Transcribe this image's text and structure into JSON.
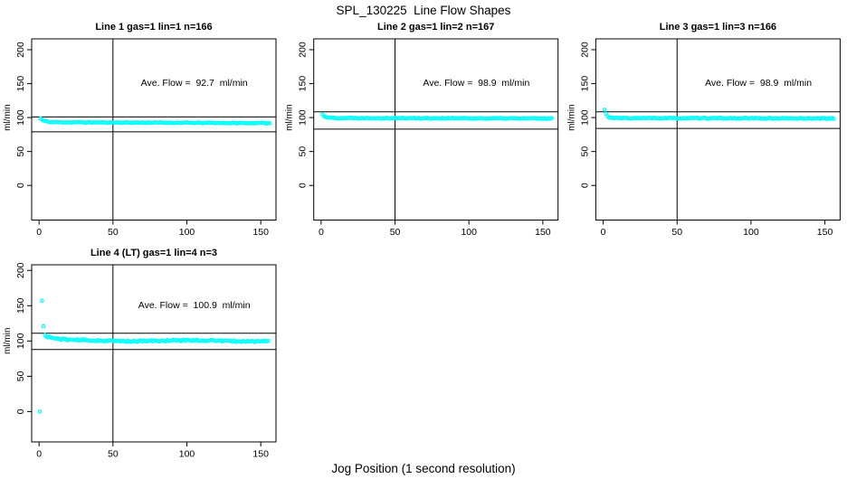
{
  "page": {
    "title": "SPL_130225  Line Flow Shapes",
    "xlabel": "Jog Position (1 second resolution)"
  },
  "colors": {
    "point": "#00FFFF",
    "axis": "#000000",
    "background": "#FFFFFF"
  },
  "chart_data": [
    {
      "type": "scatter",
      "line": 1,
      "gas": 1,
      "lin": 1,
      "n": 166,
      "title": "Line 1 gas=1 lin=1 n=166",
      "annotation": "Ave. Flow =  92.7  ml/min",
      "ave_flow": 92.7,
      "ylabel": "ml/min",
      "xticks": [
        0,
        50,
        100,
        150
      ],
      "yticks": [
        0,
        50,
        100,
        150,
        200
      ],
      "xlim": [
        -5,
        160.3
      ],
      "ylim": [
        -51,
        216
      ],
      "hlines": [
        101,
        79
      ],
      "vline": 50,
      "grid": false,
      "legend": null,
      "series": {
        "name": "flow",
        "x_start": 1,
        "x_end": 156,
        "start": 98.5,
        "settle": 93.2,
        "tau": 2.5,
        "drift": -1.4,
        "noise": 0.65,
        "wave": 0,
        "seed": 11,
        "outliers": []
      }
    },
    {
      "type": "scatter",
      "line": 2,
      "gas": 1,
      "lin": 2,
      "n": 167,
      "title": "Line 2 gas=1 lin=2 n=167",
      "annotation": "Ave. Flow =  98.9  ml/min",
      "ave_flow": 98.9,
      "ylabel": "ml/min",
      "xticks": [
        0,
        50,
        100,
        150
      ],
      "yticks": [
        0,
        50,
        100,
        150,
        200
      ],
      "xlim": [
        -5,
        160.3
      ],
      "ylim": [
        -51,
        216
      ],
      "hlines": [
        108.5,
        83
      ],
      "vline": 50,
      "grid": false,
      "legend": null,
      "series": {
        "name": "flow",
        "x_start": 1,
        "x_end": 156,
        "start": 104.5,
        "settle": 99.4,
        "tau": 2.0,
        "drift": -0.8,
        "noise": 0.7,
        "wave": 0,
        "seed": 22,
        "outliers": []
      }
    },
    {
      "type": "scatter",
      "line": 3,
      "gas": 1,
      "lin": 3,
      "n": 166,
      "title": "Line 3 gas=1 lin=3 n=166",
      "annotation": "Ave. Flow =  98.9  ml/min",
      "ave_flow": 98.9,
      "ylabel": "ml/min",
      "xticks": [
        0,
        50,
        100,
        150
      ],
      "yticks": [
        0,
        50,
        100,
        150,
        200
      ],
      "xlim": [
        -5,
        160.3
      ],
      "ylim": [
        -51,
        216
      ],
      "hlines": [
        108.5,
        84
      ],
      "vline": 50,
      "grid": false,
      "legend": null,
      "series": {
        "name": "flow",
        "x_start": 1,
        "x_end": 156,
        "start": 111.5,
        "settle": 99.2,
        "tau": 1.4,
        "drift": -0.5,
        "noise": 0.7,
        "wave": 0,
        "seed": 33,
        "outliers": []
      }
    },
    {
      "type": "scatter",
      "line": 4,
      "gas": 1,
      "lin": 4,
      "n": 3,
      "title": "Line 4 (LT) gas=1 lin=4 n=3",
      "annotation": "Ave. Flow =  100.9  ml/min",
      "ave_flow": 100.9,
      "ylabel": "ml/min",
      "xticks": [
        0,
        50,
        100,
        150
      ],
      "yticks": [
        0,
        50,
        100,
        150,
        200
      ],
      "xlim": [
        -5,
        160.3
      ],
      "ylim": [
        -43,
        208
      ],
      "hlines": [
        111,
        88
      ],
      "vline": 50,
      "grid": false,
      "legend": null,
      "series": {
        "name": "flow",
        "x_start": 4,
        "x_end": 155,
        "start": 107.5,
        "settle": 100.6,
        "tau": 7,
        "drift": -0.5,
        "noise": 1.15,
        "wave": 0.7,
        "seed": 44,
        "outliers": [
          [
            0.5,
            0
          ],
          [
            2,
            157
          ],
          [
            3,
            121
          ]
        ]
      }
    }
  ]
}
